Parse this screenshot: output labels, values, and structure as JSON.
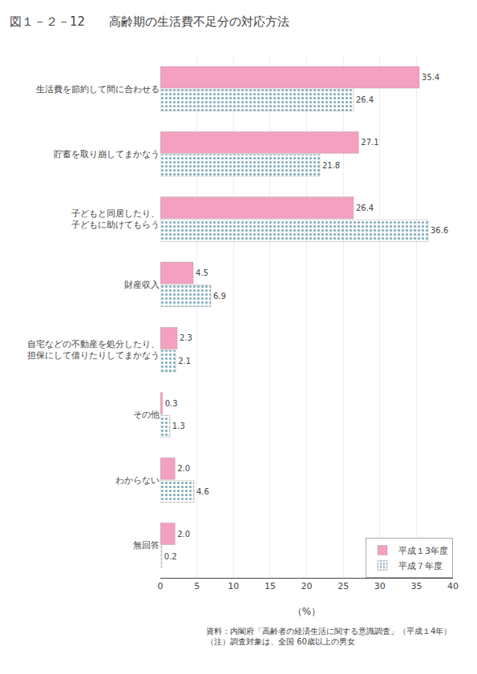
{
  "chart_data": {
    "type": "bar",
    "orientation": "horizontal",
    "title": "図１－２－12　　高齢期の生活費不足分の対応方法",
    "categories": [
      "生活費を節約して間に合わせる",
      "貯蓄を取り崩してまかなう",
      "子どもと同居したり、\n子どもに助けてもらう",
      "財産収入",
      "自宅などの不動産を処分したり、\n担保にして借りたりしてまかなう",
      "その他",
      "わからない",
      "無回答"
    ],
    "series": [
      {
        "name": "平成１3年度",
        "color": "#f4a0c0",
        "values": [
          35.4,
          27.1,
          26.4,
          4.5,
          2.3,
          0.3,
          2.0,
          2.0
        ],
        "value_labels": [
          "35.4",
          "27.1",
          "26.4",
          "4.5",
          "2.3",
          "0.3",
          "2.0",
          "2.0"
        ]
      },
      {
        "name": "平成７年度",
        "color": "#b0e0f0",
        "values": [
          26.4,
          21.8,
          36.6,
          6.9,
          2.1,
          1.3,
          4.6,
          0.2
        ]
      }
    ],
    "x_label": "（%）",
    "xlim": [
      0,
      40
    ],
    "xticks": [
      0,
      5,
      10,
      15,
      20,
      25,
      30,
      35,
      40
    ],
    "grid": true,
    "legend": "lower right",
    "data_labels": true,
    "annotations": [
      "資料：内閣府「高齢者の経済生活に関する意識調査」（平成１4年）\n（注）調査対象は、全国 60歳以上の男女"
    ]
  }
}
